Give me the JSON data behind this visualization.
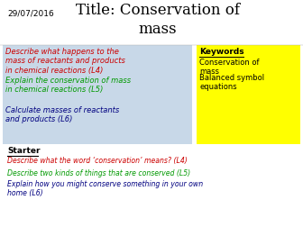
{
  "date": "29/07/2016",
  "title": "Title: Conservation of\nmass",
  "bg_color": "#ffffff",
  "objectives": [
    {
      "text": "Describe what happens to the\nmass of reactants and products\nin chemical reactions (L4)",
      "color": "#cc0000"
    },
    {
      "text": "Explain the conservation of mass\nin chemical reactions (L5)",
      "color": "#009900"
    },
    {
      "text": "Calculate masses of reactants\nand products (L6)",
      "color": "#000080"
    }
  ],
  "obj_box_color": "#c8d8e8",
  "keywords_bg": "#ffff00",
  "keywords_title": "Keywords",
  "keywords": [
    "Conservation of\nmass",
    "Balanced symbol\nequations"
  ],
  "keywords_color": "#000000",
  "starter_label": "Starter",
  "starter_items": [
    {
      "text": "Describe what the word ‘conservation’ means? (L4)",
      "color": "#cc0000"
    },
    {
      "text": "Describe two kinds of things that are conserved (L5)",
      "color": "#009900"
    },
    {
      "text": "Explain how you might conserve something in your own\nhome (L6)",
      "color": "#000080"
    }
  ]
}
